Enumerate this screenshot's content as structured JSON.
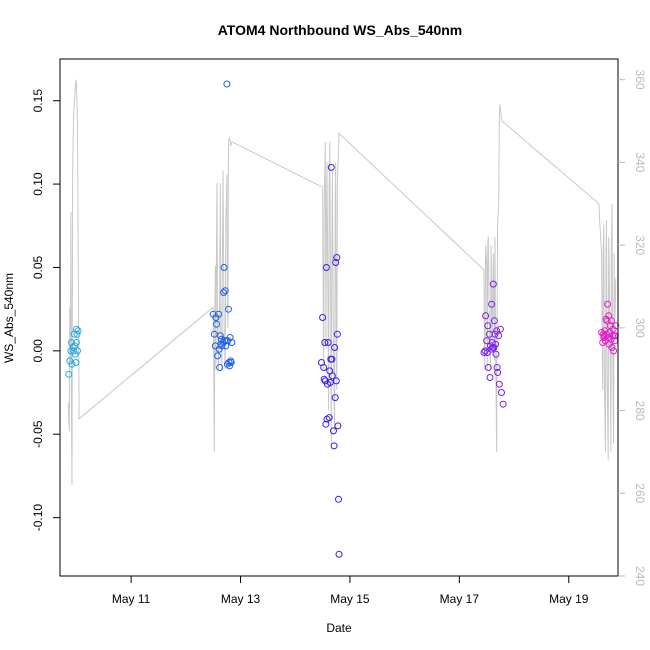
{
  "chart_data": {
    "type": "scatter",
    "title": "ATOM4 Northbound WS_Abs_540nm",
    "xlabel": "Date",
    "ylabel": "WS_Abs_540nm",
    "x_unit": "days since Jan 1 (May 1 = 121)",
    "xlim": [
      129.7,
      139.9
    ],
    "ylim": [
      -0.135,
      0.175
    ],
    "y2lim": [
      240,
      365
    ],
    "x_ticks": [
      {
        "value": 131,
        "label": "May 11"
      },
      {
        "value": 133,
        "label": "May 13"
      },
      {
        "value": 135,
        "label": "May 15"
      },
      {
        "value": 137,
        "label": "May 17"
      },
      {
        "value": 139,
        "label": "May 19"
      }
    ],
    "y_ticks": [
      {
        "value": -0.1,
        "label": "-0.10"
      },
      {
        "value": -0.05,
        "label": "-0.05"
      },
      {
        "value": 0.0,
        "label": "0.00"
      },
      {
        "value": 0.05,
        "label": "0.05"
      },
      {
        "value": 0.1,
        "label": "0.10"
      },
      {
        "value": 0.15,
        "label": "0.15"
      }
    ],
    "y2_ticks": [
      {
        "value": 240,
        "label": "240"
      },
      {
        "value": 260,
        "label": "260"
      },
      {
        "value": 280,
        "label": "280"
      },
      {
        "value": 300,
        "label": "300"
      },
      {
        "value": 320,
        "label": "320"
      },
      {
        "value": 340,
        "label": "340"
      },
      {
        "value": 360,
        "label": "360"
      }
    ],
    "series": [
      {
        "color": "#29a9e0",
        "x": [
          129.86,
          129.88,
          129.9,
          129.91,
          129.92,
          129.94,
          129.95,
          129.96,
          129.97,
          129.98,
          129.99,
          130.0,
          130.0,
          130.01,
          130.02,
          130.03
        ],
        "y": [
          -0.014,
          -0.006,
          0.0,
          0.005,
          -0.008,
          0.002,
          0.0,
          0.01,
          0.003,
          -0.002,
          -0.007,
          0.013,
          0.005,
          0.01,
          0.0,
          0.012
        ]
      },
      {
        "color": "#1f5fe6",
        "x": [
          132.5,
          132.52,
          132.54,
          132.55,
          132.56,
          132.58,
          132.6,
          132.61,
          132.62,
          132.63,
          132.64,
          132.65,
          132.66,
          132.68,
          132.69,
          132.7,
          132.71,
          132.72,
          132.73,
          132.74,
          132.75,
          132.76,
          132.77,
          132.78,
          132.79,
          132.8,
          132.81,
          132.82,
          132.83,
          132.84
        ],
        "y": [
          0.022,
          0.01,
          0.003,
          0.02,
          0.016,
          -0.003,
          0.022,
          0.001,
          -0.01,
          0.009,
          0.004,
          0.007,
          0.003,
          0.005,
          0.035,
          0.05,
          0.006,
          0.036,
          0.003,
          0.006,
          0.16,
          -0.008,
          0.006,
          0.025,
          -0.007,
          -0.009,
          0.008,
          -0.006,
          -0.007,
          0.005
        ]
      },
      {
        "color": "#3b1fe0",
        "x": [
          134.48,
          134.5,
          134.52,
          134.53,
          134.54,
          134.55,
          134.56,
          134.57,
          134.58,
          134.59,
          134.6,
          134.62,
          134.63,
          134.64,
          134.65,
          134.66,
          134.67,
          134.68,
          134.7,
          134.71,
          134.72,
          134.73,
          134.74,
          134.75,
          134.76,
          134.77,
          134.78,
          134.79,
          134.8
        ],
        "y": [
          -0.007,
          0.02,
          -0.01,
          -0.017,
          0.005,
          -0.018,
          -0.044,
          0.05,
          -0.041,
          -0.02,
          0.005,
          -0.04,
          -0.012,
          -0.019,
          -0.005,
          0.11,
          -0.005,
          -0.015,
          -0.048,
          -0.057,
          0.002,
          -0.028,
          0.053,
          -0.018,
          0.056,
          0.01,
          -0.045,
          -0.089,
          -0.122
        ]
      },
      {
        "color": "#7a1fe6",
        "x": [
          137.45,
          137.47,
          137.48,
          137.5,
          137.51,
          137.52,
          137.53,
          137.55,
          137.56,
          137.57,
          137.58,
          137.59,
          137.6,
          137.61,
          137.62,
          137.63,
          137.64,
          137.65,
          137.66,
          137.67,
          137.68,
          137.69,
          137.7,
          137.72,
          137.73,
          137.75,
          137.77,
          137.8
        ],
        "y": [
          -0.001,
          0.0,
          0.021,
          0.006,
          -0.001,
          0.015,
          -0.01,
          0.01,
          -0.016,
          0.003,
          0.001,
          0.028,
          0.005,
          0.002,
          0.04,
          0.002,
          0.018,
          0.01,
          0.004,
          -0.002,
          0.012,
          -0.01,
          -0.013,
          0.009,
          -0.02,
          0.013,
          -0.025,
          -0.032
        ]
      },
      {
        "color": "#e01fc8",
        "x": [
          139.6,
          139.62,
          139.63,
          139.64,
          139.65,
          139.66,
          139.67,
          139.68,
          139.69,
          139.7,
          139.71,
          139.72,
          139.73,
          139.74,
          139.75,
          139.76,
          139.77,
          139.78,
          139.79,
          139.8,
          139.81,
          139.82,
          139.83,
          139.84,
          139.85,
          139.86
        ],
        "y": [
          0.011,
          0.005,
          0.01,
          0.008,
          0.009,
          0.012,
          0.006,
          0.019,
          0.01,
          0.018,
          0.028,
          0.008,
          0.021,
          0.004,
          0.011,
          0.015,
          0.007,
          0.018,
          0.002,
          0.009,
          0.013,
          0.0,
          0.009,
          0.006,
          0.009,
          0.015
        ]
      }
    ],
    "secondary_line": {
      "color": "#c8c8c8",
      "points": [
        [
          129.85,
          282
        ],
        [
          129.87,
          275
        ],
        [
          129.88,
          305
        ],
        [
          129.89,
          292
        ],
        [
          129.9,
          328
        ],
        [
          129.91,
          278
        ],
        [
          129.92,
          262
        ],
        [
          129.93,
          335
        ],
        [
          129.94,
          345
        ],
        [
          129.95,
          352
        ],
        [
          129.96,
          354
        ],
        [
          129.97,
          356
        ],
        [
          129.98,
          358
        ],
        [
          129.99,
          360
        ],
        [
          130.0,
          359
        ],
        [
          130.02,
          350
        ],
        [
          130.04,
          300
        ],
        [
          130.05,
          278
        ],
        [
          132.5,
          305
        ],
        [
          132.51,
          290
        ],
        [
          132.52,
          270
        ],
        [
          132.53,
          300
        ],
        [
          132.54,
          315
        ],
        [
          132.55,
          290
        ],
        [
          132.56,
          320
        ],
        [
          132.57,
          335
        ],
        [
          132.58,
          300
        ],
        [
          132.6,
          290
        ],
        [
          132.62,
          310
        ],
        [
          132.63,
          335
        ],
        [
          132.64,
          300
        ],
        [
          132.66,
          290
        ],
        [
          132.67,
          320
        ],
        [
          132.68,
          338
        ],
        [
          132.7,
          300
        ],
        [
          132.72,
          290
        ],
        [
          132.73,
          325
        ],
        [
          132.75,
          337
        ],
        [
          132.76,
          305
        ],
        [
          132.77,
          300
        ],
        [
          132.78,
          345
        ],
        [
          132.8,
          346
        ],
        [
          132.82,
          344
        ],
        [
          132.84,
          345
        ],
        [
          134.5,
          334
        ],
        [
          134.51,
          310
        ],
        [
          134.52,
          290
        ],
        [
          134.53,
          330
        ],
        [
          134.55,
          345
        ],
        [
          134.56,
          295
        ],
        [
          134.57,
          322
        ],
        [
          134.58,
          340
        ],
        [
          134.6,
          300
        ],
        [
          134.61,
          280
        ],
        [
          134.62,
          335
        ],
        [
          134.63,
          345
        ],
        [
          134.65,
          300
        ],
        [
          134.66,
          272
        ],
        [
          134.67,
          320
        ],
        [
          134.68,
          338
        ],
        [
          134.7,
          295
        ],
        [
          134.72,
          275
        ],
        [
          134.73,
          330
        ],
        [
          134.74,
          340
        ],
        [
          134.75,
          295
        ],
        [
          134.76,
          285
        ],
        [
          134.77,
          335
        ],
        [
          134.8,
          347
        ],
        [
          137.45,
          314
        ],
        [
          137.46,
          290
        ],
        [
          137.47,
          295
        ],
        [
          137.48,
          320
        ],
        [
          137.5,
          315
        ],
        [
          137.51,
          290
        ],
        [
          137.52,
          320
        ],
        [
          137.53,
          322
        ],
        [
          137.55,
          300
        ],
        [
          137.57,
          290
        ],
        [
          137.58,
          320
        ],
        [
          137.6,
          295
        ],
        [
          137.62,
          318
        ],
        [
          137.64,
          292
        ],
        [
          137.65,
          322
        ],
        [
          137.66,
          300
        ],
        [
          137.68,
          270
        ],
        [
          137.69,
          300
        ],
        [
          137.7,
          325
        ],
        [
          137.72,
          330
        ],
        [
          137.73,
          350
        ],
        [
          137.74,
          354
        ],
        [
          137.76,
          352
        ],
        [
          137.78,
          350
        ],
        [
          139.55,
          330
        ],
        [
          139.57,
          325
        ],
        [
          139.6,
          318
        ],
        [
          139.61,
          300
        ],
        [
          139.62,
          285
        ],
        [
          139.63,
          318
        ],
        [
          139.64,
          325
        ],
        [
          139.65,
          290
        ],
        [
          139.67,
          270
        ],
        [
          139.68,
          316
        ],
        [
          139.69,
          326
        ],
        [
          139.7,
          290
        ],
        [
          139.72,
          268
        ],
        [
          139.73,
          322
        ],
        [
          139.74,
          316
        ],
        [
          139.76,
          290
        ],
        [
          139.77,
          270
        ],
        [
          139.78,
          320
        ],
        [
          139.79,
          330
        ],
        [
          139.8,
          300
        ],
        [
          139.82,
          272
        ],
        [
          139.83,
          318
        ],
        [
          139.84,
          300
        ],
        [
          139.86,
          312
        ]
      ]
    }
  }
}
